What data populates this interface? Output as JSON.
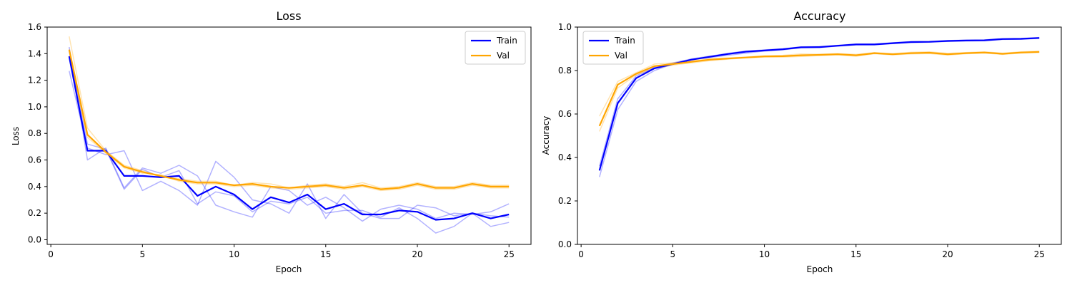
{
  "chart_data": [
    {
      "type": "line",
      "title": "Loss",
      "xlabel": "Epoch",
      "ylabel": "Loss",
      "xlim": [
        -0.2,
        26.2
      ],
      "ylim": [
        -0.035,
        1.6
      ],
      "xticks": [
        0,
        5,
        10,
        15,
        20,
        25
      ],
      "xtick_labels": [
        "0",
        "5",
        "10",
        "15",
        "20",
        "25"
      ],
      "yticks": [
        0.0,
        0.2,
        0.4,
        0.6,
        0.8,
        1.0,
        1.2,
        1.4,
        1.6
      ],
      "ytick_labels": [
        "0.0",
        "0.2",
        "0.4",
        "0.6",
        "0.8",
        "1.0",
        "1.2",
        "1.4",
        "1.6"
      ],
      "grid": false,
      "legend_position": "top-right",
      "x": [
        1,
        2,
        3,
        4,
        5,
        6,
        7,
        8,
        9,
        10,
        11,
        12,
        13,
        14,
        15,
        16,
        17,
        18,
        19,
        20,
        21,
        22,
        23,
        24,
        25
      ],
      "series": [
        {
          "name": "Train",
          "color": "#0000ff",
          "role": "mean",
          "values": [
            1.38,
            0.67,
            0.67,
            0.48,
            0.48,
            0.47,
            0.48,
            0.33,
            0.4,
            0.34,
            0.23,
            0.32,
            0.28,
            0.34,
            0.23,
            0.27,
            0.19,
            0.19,
            0.22,
            0.21,
            0.15,
            0.16,
            0.2,
            0.16,
            0.19
          ]
        },
        {
          "name": "Val",
          "color": "#ffa500",
          "role": "mean",
          "values": [
            1.43,
            0.79,
            0.66,
            0.55,
            0.51,
            0.48,
            0.45,
            0.43,
            0.43,
            0.41,
            0.42,
            0.4,
            0.39,
            0.4,
            0.41,
            0.39,
            0.41,
            0.38,
            0.39,
            0.42,
            0.39,
            0.39,
            0.42,
            0.4,
            0.4
          ]
        }
      ],
      "runs": [
        {
          "color": "#0000ff",
          "values": [
            1.45,
            0.6,
            0.69,
            0.39,
            0.54,
            0.5,
            0.56,
            0.48,
            0.26,
            0.21,
            0.17,
            0.4,
            0.37,
            0.26,
            0.32,
            0.24,
            0.14,
            0.23,
            0.26,
            0.23,
            0.16,
            0.2,
            0.19,
            0.21,
            0.27
          ]
        },
        {
          "color": "#0000ff",
          "values": [
            1.27,
            0.69,
            0.64,
            0.67,
            0.37,
            0.44,
            0.37,
            0.26,
            0.59,
            0.47,
            0.3,
            0.27,
            0.2,
            0.42,
            0.16,
            0.34,
            0.2,
            0.16,
            0.16,
            0.26,
            0.24,
            0.18,
            0.2,
            0.1,
            0.13
          ]
        },
        {
          "color": "#0000ff",
          "values": [
            1.42,
            0.72,
            0.68,
            0.38,
            0.53,
            0.47,
            0.52,
            0.27,
            0.36,
            0.33,
            0.21,
            0.29,
            0.27,
            0.32,
            0.2,
            0.22,
            0.22,
            0.17,
            0.24,
            0.16,
            0.05,
            0.1,
            0.2,
            0.18,
            0.17
          ]
        },
        {
          "color": "#ffa500",
          "values": [
            1.53,
            0.84,
            0.67,
            0.56,
            0.52,
            0.47,
            0.46,
            0.44,
            0.44,
            0.41,
            0.43,
            0.42,
            0.39,
            0.41,
            0.42,
            0.4,
            0.43,
            0.39,
            0.4,
            0.43,
            0.4,
            0.4,
            0.43,
            0.41,
            0.41
          ]
        },
        {
          "color": "#ffa500",
          "values": [
            1.38,
            0.77,
            0.65,
            0.54,
            0.5,
            0.49,
            0.44,
            0.42,
            0.42,
            0.4,
            0.41,
            0.39,
            0.38,
            0.39,
            0.4,
            0.38,
            0.4,
            0.37,
            0.38,
            0.41,
            0.38,
            0.38,
            0.41,
            0.39,
            0.39
          ]
        }
      ],
      "legend": [
        {
          "label": "Train",
          "color": "#0000ff"
        },
        {
          "label": "Val",
          "color": "#ffa500"
        }
      ]
    },
    {
      "type": "line",
      "title": "Accuracy",
      "xlabel": "Epoch",
      "ylabel": "Accuracy",
      "xlim": [
        -0.2,
        26.2
      ],
      "ylim": [
        0.0,
        1.0
      ],
      "xticks": [
        0,
        5,
        10,
        15,
        20,
        25
      ],
      "xtick_labels": [
        "0",
        "5",
        "10",
        "15",
        "20",
        "25"
      ],
      "yticks": [
        0.0,
        0.2,
        0.4,
        0.6,
        0.8,
        1.0
      ],
      "ytick_labels": [
        "0.0",
        "0.2",
        "0.4",
        "0.6",
        "0.8",
        "1.0"
      ],
      "grid": false,
      "legend_position": "top-left",
      "x": [
        1,
        2,
        3,
        4,
        5,
        6,
        7,
        8,
        9,
        10,
        11,
        12,
        13,
        14,
        15,
        16,
        17,
        18,
        19,
        20,
        21,
        22,
        23,
        24,
        25
      ],
      "series": [
        {
          "name": "Train",
          "color": "#0000ff",
          "role": "mean",
          "values": [
            0.34,
            0.65,
            0.765,
            0.81,
            0.83,
            0.85,
            0.863,
            0.876,
            0.887,
            0.892,
            0.898,
            0.907,
            0.908,
            0.914,
            0.92,
            0.92,
            0.926,
            0.931,
            0.932,
            0.936,
            0.938,
            0.939,
            0.945,
            0.946,
            0.95
          ]
        },
        {
          "name": "Val",
          "color": "#ffa500",
          "role": "mean",
          "values": [
            0.545,
            0.735,
            0.785,
            0.82,
            0.83,
            0.84,
            0.85,
            0.855,
            0.86,
            0.865,
            0.866,
            0.87,
            0.872,
            0.875,
            0.87,
            0.88,
            0.875,
            0.88,
            0.882,
            0.875,
            0.88,
            0.883,
            0.877,
            0.883,
            0.886
          ]
        }
      ],
      "runs": [
        {
          "color": "#0000ff",
          "values": [
            0.31,
            0.62,
            0.75,
            0.8,
            0.83,
            0.85,
            0.86,
            0.87,
            0.88,
            0.89,
            0.895,
            0.905,
            0.906,
            0.912,
            0.918,
            0.918,
            0.924,
            0.929,
            0.93,
            0.934,
            0.936,
            0.937,
            0.943,
            0.944,
            0.948
          ]
        },
        {
          "color": "#0000ff",
          "values": [
            0.36,
            0.67,
            0.775,
            0.815,
            0.835,
            0.853,
            0.866,
            0.879,
            0.89,
            0.895,
            0.9,
            0.909,
            0.91,
            0.916,
            0.922,
            0.922,
            0.928,
            0.933,
            0.934,
            0.938,
            0.94,
            0.941,
            0.947,
            0.948,
            0.952
          ]
        },
        {
          "color": "#ffa500",
          "values": [
            0.59,
            0.75,
            0.79,
            0.83,
            0.835,
            0.845,
            0.855,
            0.858,
            0.862,
            0.868,
            0.87,
            0.876,
            0.875,
            0.878,
            0.874,
            0.883,
            0.878,
            0.884,
            0.886,
            0.879,
            0.883,
            0.886,
            0.88,
            0.886,
            0.889
          ]
        },
        {
          "color": "#ffa500",
          "values": [
            0.52,
            0.72,
            0.78,
            0.81,
            0.825,
            0.835,
            0.845,
            0.852,
            0.858,
            0.862,
            0.862,
            0.865,
            0.869,
            0.872,
            0.866,
            0.877,
            0.872,
            0.876,
            0.878,
            0.871,
            0.877,
            0.88,
            0.874,
            0.88,
            0.883
          ]
        }
      ],
      "legend": [
        {
          "label": "Train",
          "color": "#0000ff"
        },
        {
          "label": "Val",
          "color": "#ffa500"
        }
      ]
    }
  ]
}
